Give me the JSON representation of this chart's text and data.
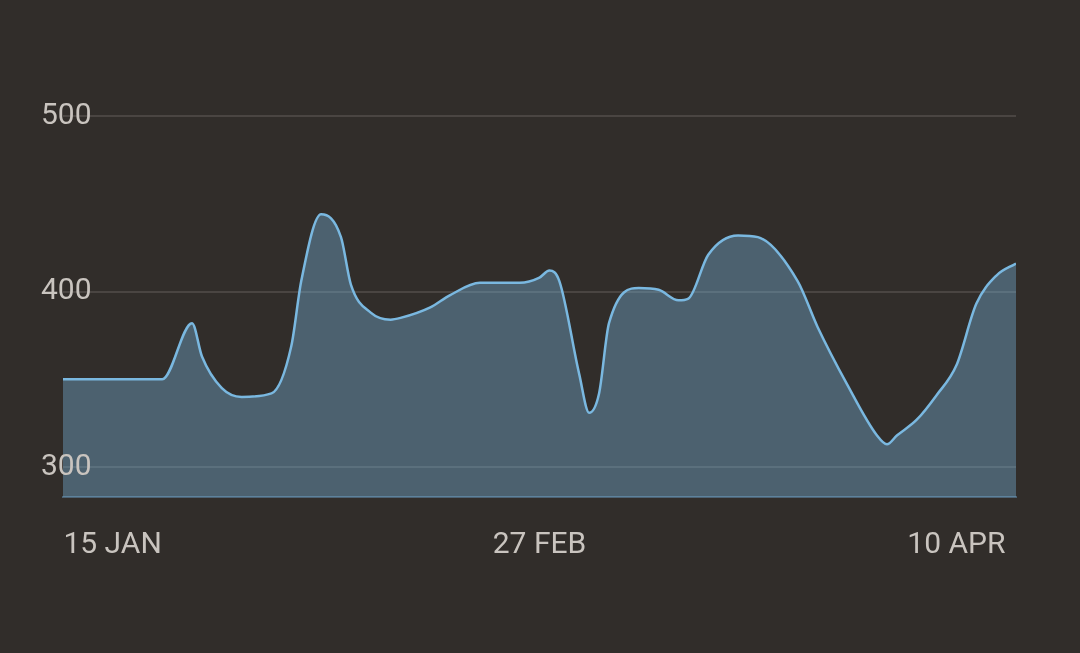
{
  "chart_data": {
    "type": "area",
    "x": [
      "--01-10",
      "--01-20",
      "--01-23",
      "--01-24",
      "--01-26",
      "--01-28",
      "--01-31",
      "--02-02",
      "--02-03",
      "--02-05",
      "--02-07",
      "--02-08",
      "--02-10",
      "--02-12",
      "--02-13",
      "--02-16",
      "--02-18",
      "--02-21",
      "--02-25",
      "--02-27",
      "--02-28",
      "--03-01",
      "--03-03",
      "--03-04",
      "--03-05",
      "--03-06",
      "--03-09",
      "--03-11",
      "--03-13",
      "--03-14",
      "--03-16",
      "--03-19",
      "--03-21",
      "--03-25",
      "--03-27",
      "--03-30",
      "--04-02",
      "--04-03",
      "--04-04",
      "--04-06",
      "--04-08",
      "--04-10",
      "--04-12",
      "--04-14",
      "--04-16"
    ],
    "series": [
      {
        "color": "#7ab8e0",
        "values": [
          350,
          350,
          382,
          363,
          345,
          340,
          342,
          369,
          406,
          444,
          431,
          404,
          388,
          384,
          385,
          391,
          398,
          405,
          405,
          408,
          412,
          406,
          353,
          331,
          342,
          382,
          402,
          401,
          395,
          396,
          421,
          432,
          431,
          406,
          380,
          347,
          318,
          313,
          318,
          327,
          341,
          358,
          393,
          409,
          416
        ]
      }
    ],
    "xlim": [
      "--01-10",
      "--04-16"
    ],
    "xticks": [
      {
        "value": "--01-15",
        "label": "15 JAN"
      },
      {
        "value": "--02-27",
        "label": "27 FEB"
      },
      {
        "value": "--04-10",
        "label": "10 APR"
      }
    ],
    "ylim": [
      283,
      500
    ],
    "yticks": [
      300,
      400,
      500
    ],
    "grid": "y"
  }
}
